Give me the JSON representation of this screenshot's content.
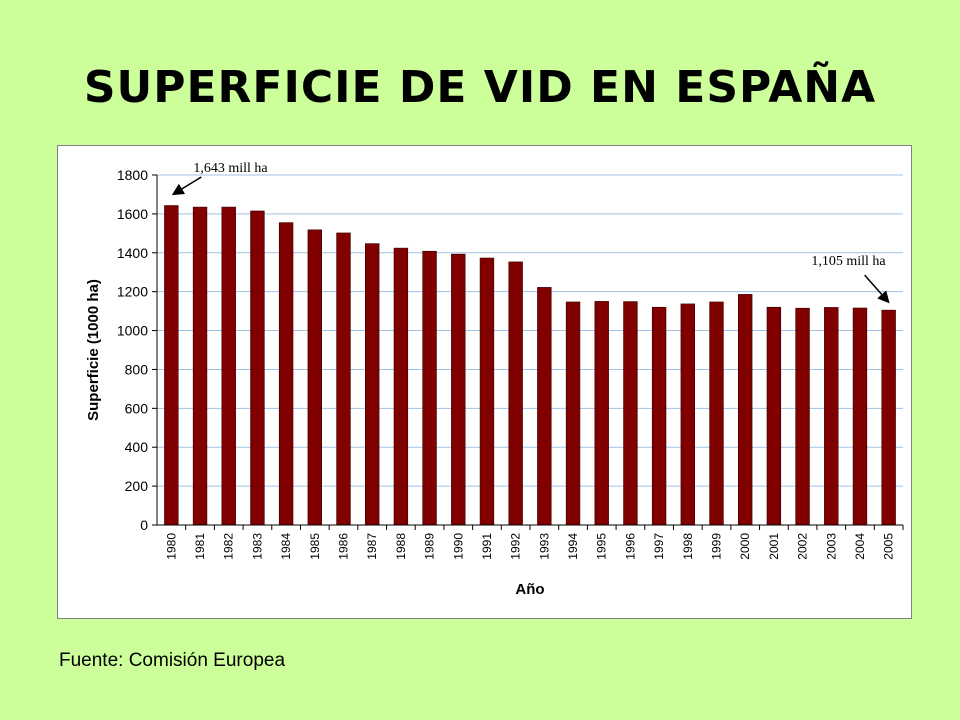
{
  "slide": {
    "title": "SUPERFICIE DE VID EN ESPAÑA",
    "source": "Fuente: Comisión Europea"
  },
  "chart_data": {
    "type": "bar",
    "categories": [
      "1980",
      "1981",
      "1982",
      "1983",
      "1984",
      "1985",
      "1986",
      "1987",
      "1988",
      "1989",
      "1990",
      "1991",
      "1992",
      "1993",
      "1994",
      "1995",
      "1996",
      "1997",
      "1998",
      "1999",
      "2000",
      "2001",
      "2002",
      "2003",
      "2004",
      "2005"
    ],
    "series": [
      {
        "values": [
          1643,
          1635,
          1635,
          1615,
          1555,
          1518,
          1502,
          1447,
          1424,
          1408,
          1393,
          1373,
          1353,
          1222,
          1147,
          1150,
          1149,
          1120,
          1137,
          1147,
          1186,
          1120,
          1115,
          1119,
          1116,
          1105
        ]
      }
    ],
    "title": "",
    "xlabel": "Año",
    "ylabel": "Superficie (1000 ha)",
    "ylim": [
      0,
      1800
    ],
    "yticks": [
      0,
      200,
      400,
      600,
      800,
      1000,
      1200,
      1400,
      1600,
      1800
    ],
    "grid": true,
    "legend": "none",
    "bar_color": "#800000",
    "annotations": [
      {
        "text": "1,643 mill ha",
        "category": "1980"
      },
      {
        "text": "1,105 mill ha",
        "category": "2005"
      }
    ]
  }
}
